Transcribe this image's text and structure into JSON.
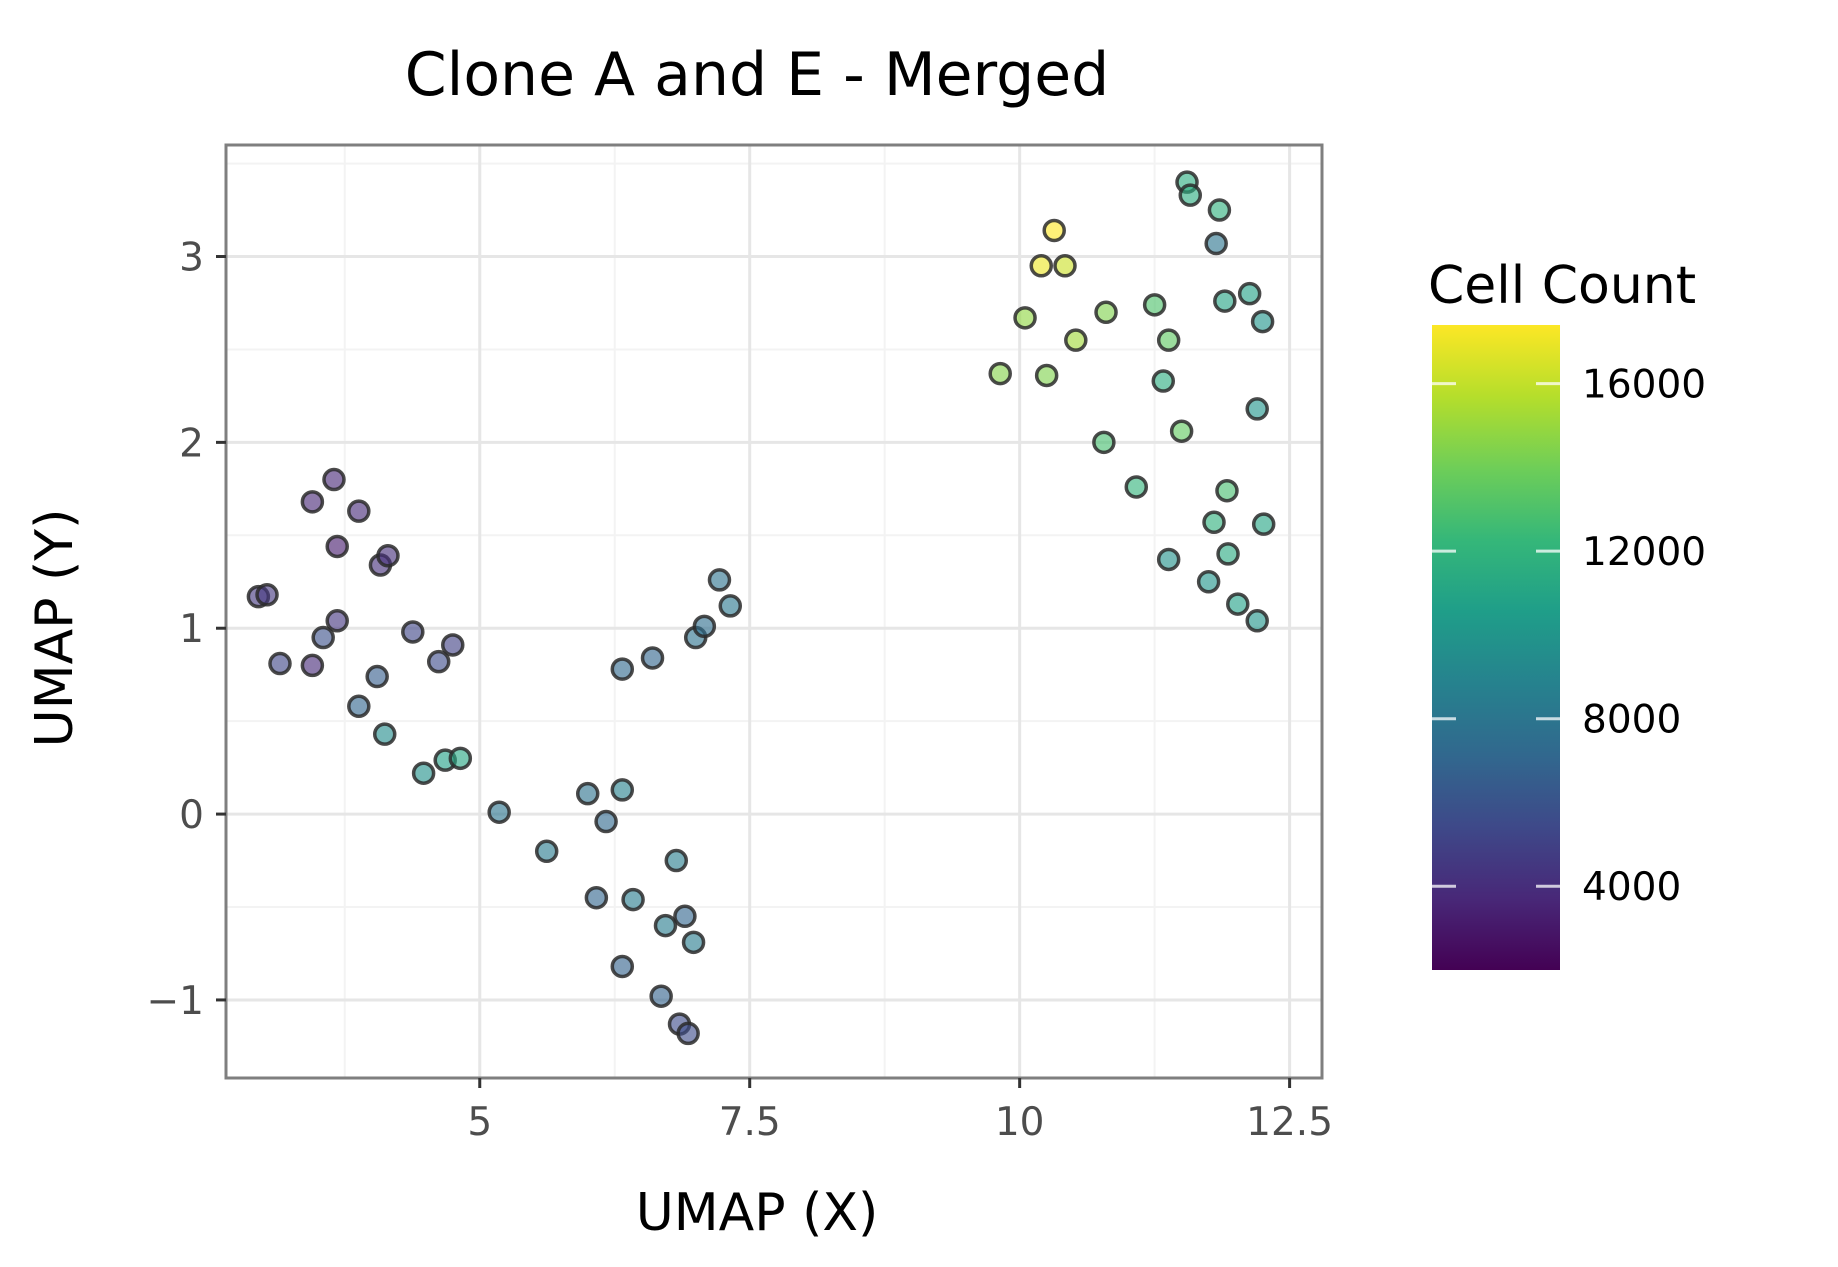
{
  "chart_data": {
    "type": "scatter",
    "title": "Clone A and E - Merged",
    "xlabel": "UMAP (X)",
    "ylabel": "UMAP (Y)",
    "xlim": [
      2.65,
      12.8
    ],
    "ylim": [
      -1.42,
      3.6
    ],
    "x_ticks": [
      5,
      7.5,
      10,
      12.5
    ],
    "x_tick_labels": [
      "5",
      "7.5",
      "10",
      "12.5"
    ],
    "y_ticks": [
      -1,
      0,
      1,
      2,
      3
    ],
    "y_tick_labels": [
      "−1",
      "0",
      "1",
      "2",
      "3"
    ],
    "grid": true,
    "legend": {
      "title": "Cell Count",
      "placement": "right",
      "min": 2000,
      "max": 17400,
      "ticks": [
        4000,
        8000,
        12000,
        16000
      ],
      "tick_labels": [
        "4000",
        "8000",
        "12000",
        "16000"
      ],
      "colormap": "viridis"
    },
    "points": [
      {
        "x": 2.95,
        "y": 1.17,
        "c": 4500
      },
      {
        "x": 3.03,
        "y": 1.18,
        "c": 4500
      },
      {
        "x": 3.15,
        "y": 0.81,
        "c": 5200
      },
      {
        "x": 3.45,
        "y": 0.8,
        "c": 3800
      },
      {
        "x": 3.45,
        "y": 1.68,
        "c": 3700
      },
      {
        "x": 3.55,
        "y": 0.95,
        "c": 5800
      },
      {
        "x": 3.65,
        "y": 1.8,
        "c": 3700
      },
      {
        "x": 3.68,
        "y": 1.44,
        "c": 3200
      },
      {
        "x": 3.68,
        "y": 1.04,
        "c": 4400
      },
      {
        "x": 3.88,
        "y": 1.63,
        "c": 3800
      },
      {
        "x": 3.88,
        "y": 0.58,
        "c": 7000
      },
      {
        "x": 4.05,
        "y": 0.74,
        "c": 6500
      },
      {
        "x": 4.08,
        "y": 1.34,
        "c": 4000
      },
      {
        "x": 4.15,
        "y": 1.39,
        "c": 4000
      },
      {
        "x": 4.12,
        "y": 0.43,
        "c": 9500
      },
      {
        "x": 4.38,
        "y": 0.98,
        "c": 5200
      },
      {
        "x": 4.48,
        "y": 0.22,
        "c": 9800
      },
      {
        "x": 4.62,
        "y": 0.82,
        "c": 5600
      },
      {
        "x": 4.68,
        "y": 0.29,
        "c": 10800
      },
      {
        "x": 4.75,
        "y": 0.91,
        "c": 5000
      },
      {
        "x": 4.82,
        "y": 0.3,
        "c": 11200
      },
      {
        "x": 5.18,
        "y": 0.01,
        "c": 8000
      },
      {
        "x": 5.62,
        "y": -0.2,
        "c": 8400
      },
      {
        "x": 6.0,
        "y": 0.11,
        "c": 7800
      },
      {
        "x": 6.08,
        "y": -0.45,
        "c": 7000
      },
      {
        "x": 6.17,
        "y": -0.04,
        "c": 7200
      },
      {
        "x": 6.32,
        "y": 0.78,
        "c": 7200
      },
      {
        "x": 6.32,
        "y": 0.13,
        "c": 8800
      },
      {
        "x": 6.32,
        "y": -0.82,
        "c": 6800
      },
      {
        "x": 6.42,
        "y": -0.46,
        "c": 8500
      },
      {
        "x": 6.6,
        "y": 0.84,
        "c": 7000
      },
      {
        "x": 6.68,
        "y": -0.98,
        "c": 6800
      },
      {
        "x": 6.72,
        "y": -0.6,
        "c": 8500
      },
      {
        "x": 6.82,
        "y": -0.25,
        "c": 8600
      },
      {
        "x": 6.85,
        "y": -1.13,
        "c": 5600
      },
      {
        "x": 6.9,
        "y": -0.55,
        "c": 7000
      },
      {
        "x": 6.93,
        "y": -1.18,
        "c": 5600
      },
      {
        "x": 6.98,
        "y": -0.69,
        "c": 8500
      },
      {
        "x": 7.0,
        "y": 0.95,
        "c": 7800
      },
      {
        "x": 7.08,
        "y": 1.01,
        "c": 7500
      },
      {
        "x": 7.22,
        "y": 1.26,
        "c": 7800
      },
      {
        "x": 7.32,
        "y": 1.12,
        "c": 8200
      },
      {
        "x": 9.82,
        "y": 2.37,
        "c": 14500
      },
      {
        "x": 10.05,
        "y": 2.67,
        "c": 14800
      },
      {
        "x": 10.2,
        "y": 2.95,
        "c": 17000
      },
      {
        "x": 10.25,
        "y": 2.36,
        "c": 14400
      },
      {
        "x": 10.32,
        "y": 3.14,
        "c": 17400
      },
      {
        "x": 10.42,
        "y": 2.95,
        "c": 16200
      },
      {
        "x": 10.52,
        "y": 2.55,
        "c": 15200
      },
      {
        "x": 10.78,
        "y": 2.0,
        "c": 12800
      },
      {
        "x": 10.8,
        "y": 2.7,
        "c": 14400
      },
      {
        "x": 11.08,
        "y": 1.76,
        "c": 12000
      },
      {
        "x": 11.25,
        "y": 2.74,
        "c": 13000
      },
      {
        "x": 11.33,
        "y": 2.33,
        "c": 11600
      },
      {
        "x": 11.38,
        "y": 2.55,
        "c": 13500
      },
      {
        "x": 11.38,
        "y": 1.37,
        "c": 9800
      },
      {
        "x": 11.5,
        "y": 2.06,
        "c": 13600
      },
      {
        "x": 11.55,
        "y": 3.4,
        "c": 11500
      },
      {
        "x": 11.58,
        "y": 3.33,
        "c": 11500
      },
      {
        "x": 11.75,
        "y": 1.25,
        "c": 10000
      },
      {
        "x": 11.8,
        "y": 1.57,
        "c": 11800
      },
      {
        "x": 11.82,
        "y": 3.07,
        "c": 8000
      },
      {
        "x": 11.85,
        "y": 3.25,
        "c": 11800
      },
      {
        "x": 11.9,
        "y": 2.76,
        "c": 11000
      },
      {
        "x": 11.92,
        "y": 1.74,
        "c": 12800
      },
      {
        "x": 11.93,
        "y": 1.4,
        "c": 11400
      },
      {
        "x": 12.02,
        "y": 1.13,
        "c": 10800
      },
      {
        "x": 12.13,
        "y": 2.8,
        "c": 10800
      },
      {
        "x": 12.2,
        "y": 1.04,
        "c": 10000
      },
      {
        "x": 12.2,
        "y": 2.18,
        "c": 10000
      },
      {
        "x": 12.25,
        "y": 2.65,
        "c": 10000
      },
      {
        "x": 12.26,
        "y": 1.56,
        "c": 11000
      }
    ]
  }
}
